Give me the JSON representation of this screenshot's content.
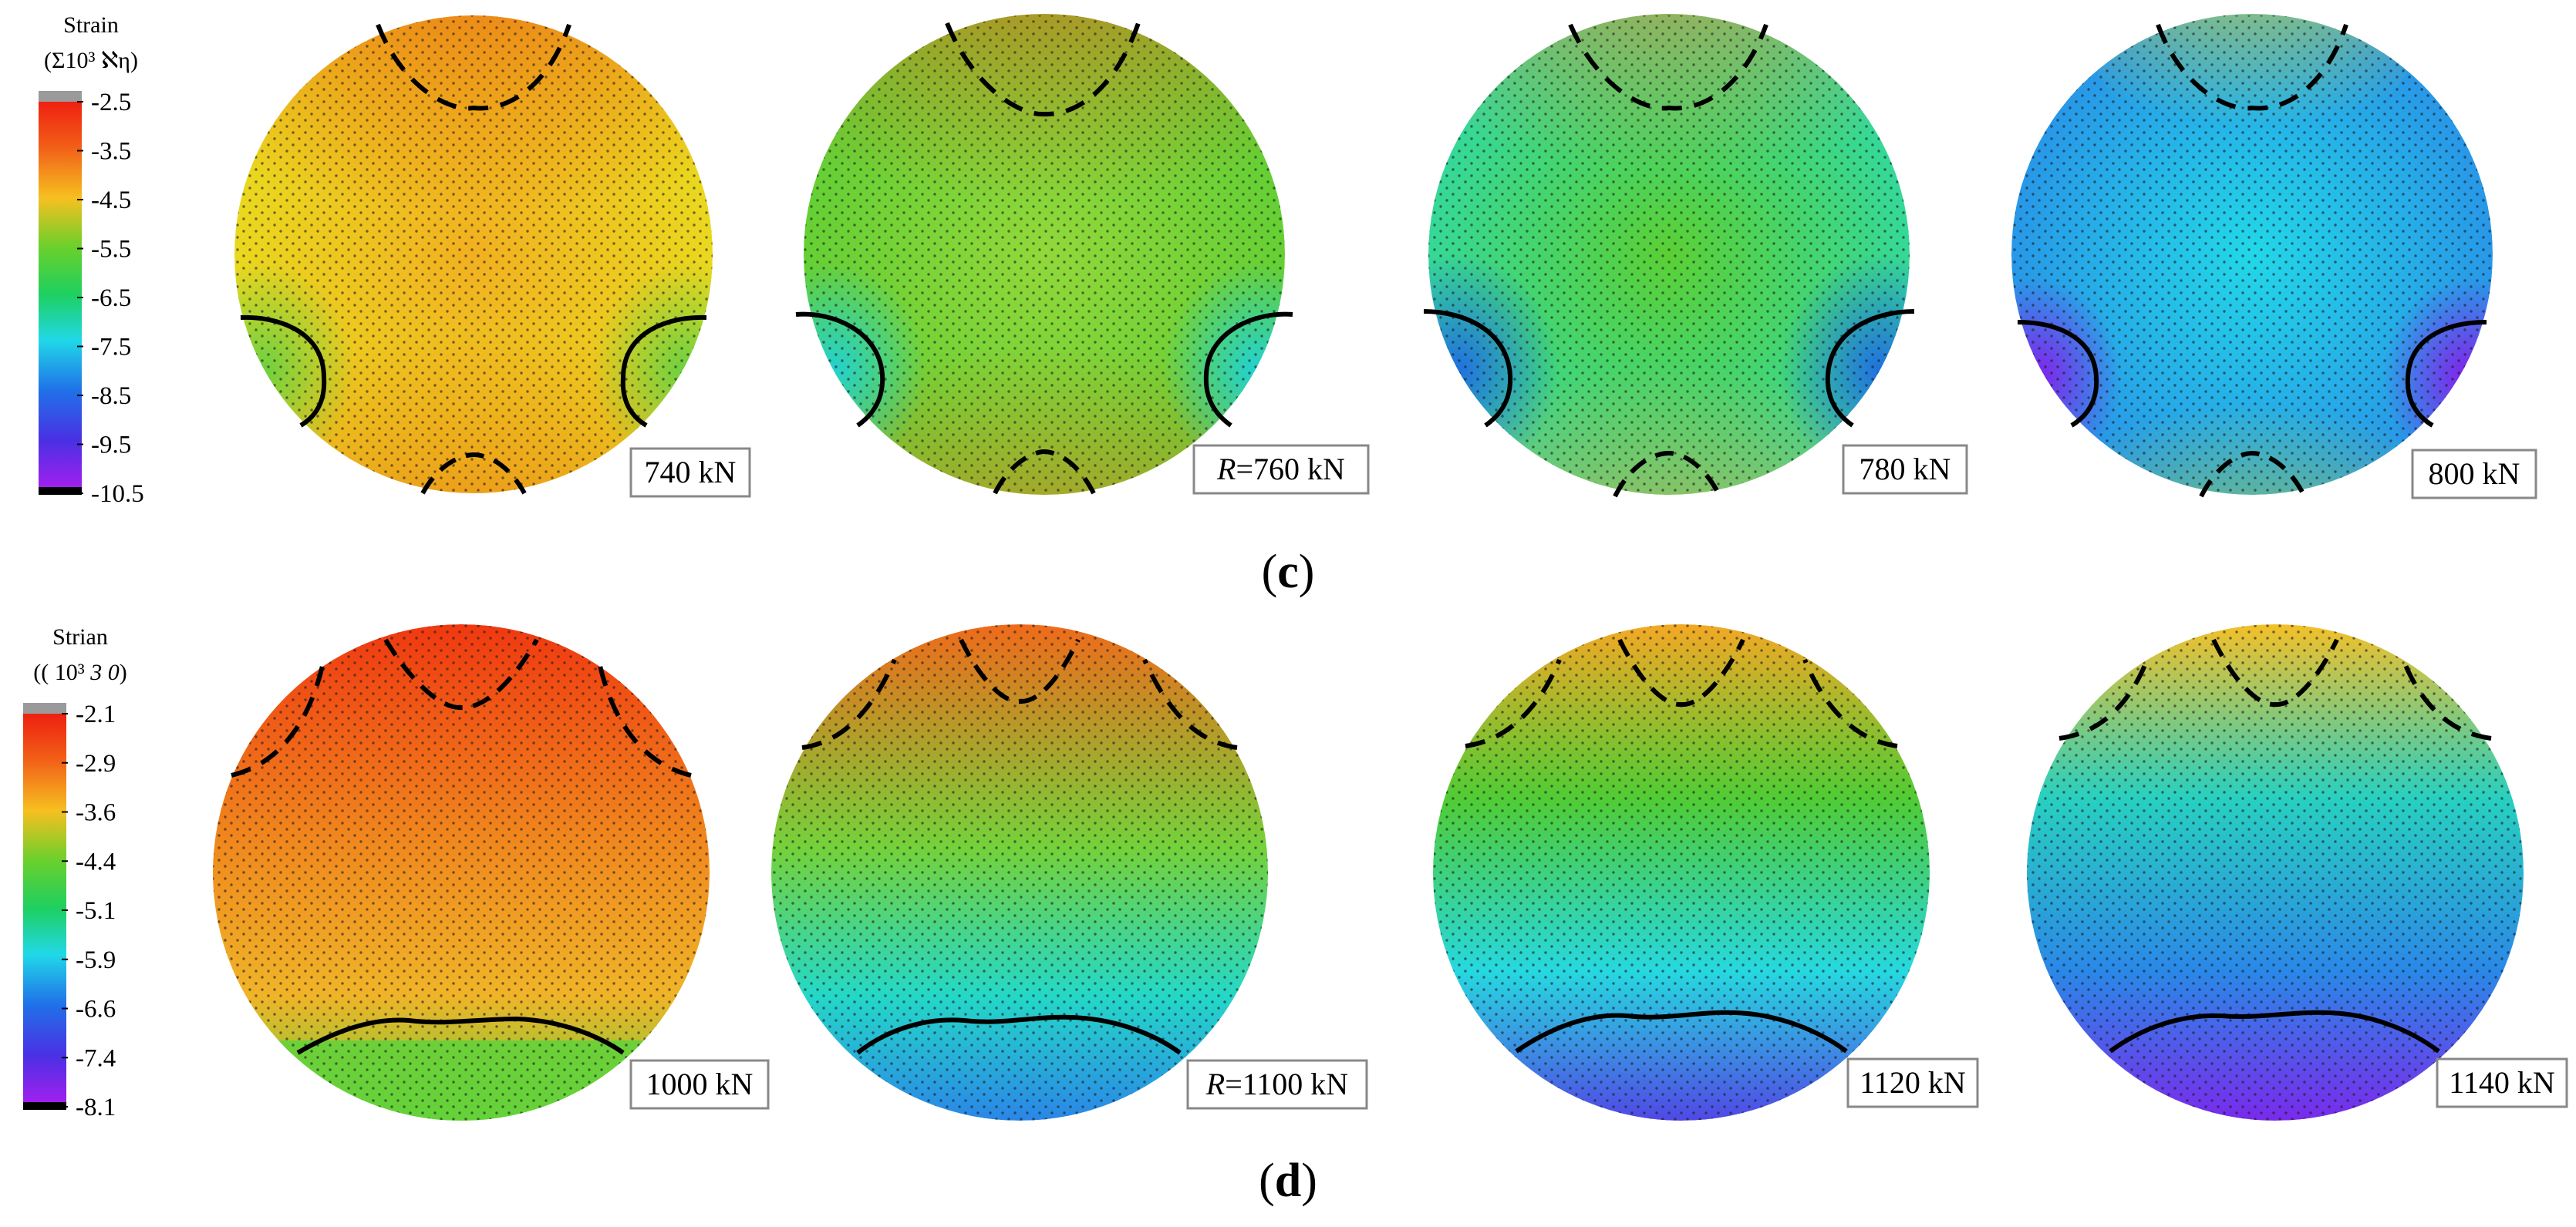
{
  "rows": [
    {
      "panel_label": "c",
      "scale": {
        "title": "Strain",
        "unit": "(Σ10³ ℵη)",
        "ticks": [
          "-2.5",
          "-3.5",
          "-4.5",
          "-5.5",
          "-6.5",
          "-7.5",
          "-8.5",
          "-9.5",
          "-10.5"
        ],
        "range": [
          -10.5,
          -2.5
        ]
      },
      "circles": [
        {
          "label": "740  kN",
          "colors": {
            "top": "#f03a10",
            "center": "#f2b020",
            "side": "#e7e81e",
            "spot": "#6cd040",
            "bottom": "#f05a14"
          }
        },
        {
          "prefix": "R",
          "label": "=760  kN",
          "colors": {
            "top": "#f06418",
            "center": "#92d83a",
            "side": "#52cc32",
            "spot": "#22d2d0",
            "bottom": "#f07a1e"
          }
        },
        {
          "label": "780  kN",
          "colors": {
            "top": "#f58a20",
            "center": "#5ad035",
            "side": "#26dcc0",
            "spot": "#2070e0",
            "bottom": "#f5a524"
          }
        },
        {
          "label": "800  kN",
          "colors": {
            "top": "#e6e820",
            "center": "#22d8e8",
            "side": "#2a7ee8",
            "spot": "#8420ec",
            "bottom": "#b0e030"
          }
        }
      ]
    },
    {
      "panel_label": "d",
      "scale": {
        "title": "Strian",
        "unit": "((  10³",
        "unit_italic": "3 0",
        "unit_close": ")",
        "ticks": [
          "-2.1",
          "-2.9",
          "-3.6",
          "-4.4",
          "-5.1",
          "-5.9",
          "-6.6",
          "-7.4",
          "-8.1"
        ],
        "range": [
          -8.1,
          -2.1
        ]
      },
      "circles": [
        {
          "label": "1000 kN",
          "colors": {
            "top": "#f03810",
            "mid": "#f08a1e",
            "low": "#f0b428",
            "bottom": "#64d23a"
          }
        },
        {
          "prefix": "R",
          "label": "=1100 kN",
          "colors": {
            "top": "#f06a1a",
            "mid": "#74d23a",
            "low": "#24d8c8",
            "bottom": "#2a86e8"
          }
        },
        {
          "label": "1120 kN",
          "colors": {
            "top": "#f4a824",
            "mid": "#50cc34",
            "low": "#26d8e0",
            "bottom": "#5048e6"
          }
        },
        {
          "label": "1140 kN",
          "colors": {
            "top": "#f4c028",
            "mid": "#28d0c0",
            "low": "#2a88e8",
            "bottom": "#7a2aec"
          }
        }
      ]
    }
  ]
}
